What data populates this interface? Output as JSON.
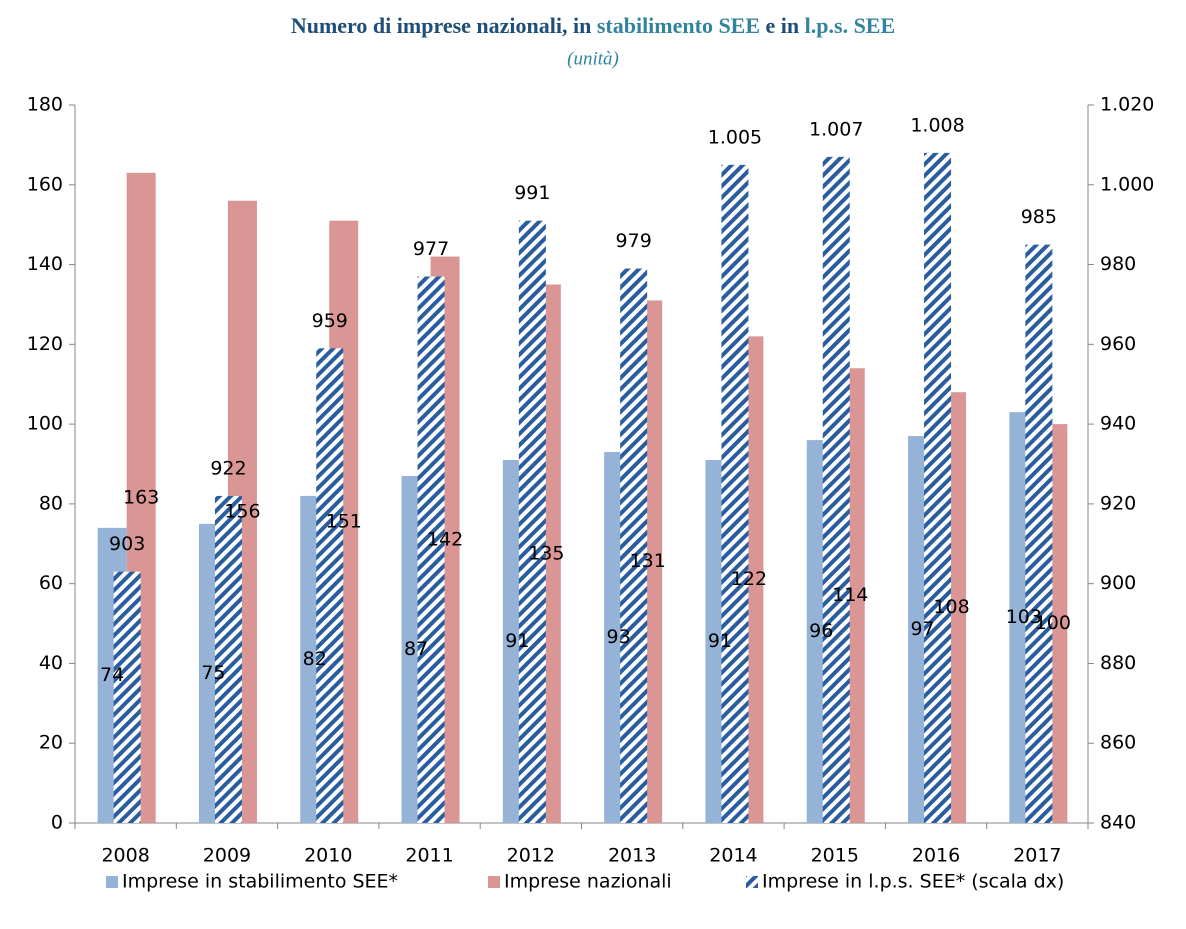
{
  "chart_data": {
    "type": "bar",
    "title_parts": [
      {
        "text": "Numero di imprese nazionali, in ",
        "color": "#1f4e79"
      },
      {
        "text": "stabilimento SEE",
        "color": "#31849b"
      },
      {
        "text": " e in ",
        "color": "#1f4e79"
      },
      {
        "text": "l.p.s. SEE",
        "color": "#31849b"
      }
    ],
    "subtitle": "(unità)",
    "categories": [
      "2008",
      "2009",
      "2010",
      "2011",
      "2012",
      "2013",
      "2014",
      "2015",
      "2016",
      "2017"
    ],
    "series": [
      {
        "name": "Imprese in stabilimento SEE*",
        "color": "#95b3d7",
        "values": [
          74,
          75,
          82,
          87,
          91,
          93,
          91,
          96,
          97,
          103
        ]
      },
      {
        "name": "Imprese nazionali",
        "color": "#d99694",
        "values": [
          163,
          156,
          151,
          142,
          135,
          131,
          122,
          114,
          108,
          100
        ]
      },
      {
        "name": "Imprese in l.p.s. SEE* (scala dx)",
        "color": "#2a5d9f",
        "hatched": true,
        "axis": "y2",
        "values": [
          903,
          922,
          959,
          977,
          991,
          979,
          1005,
          1007,
          1008,
          985
        ],
        "value_labels": [
          "903",
          "922",
          "959",
          "977",
          "991",
          "979",
          "1.005",
          "1.007",
          "1.008",
          "985"
        ]
      }
    ],
    "ylim": [
      0,
      180
    ],
    "yticks": [
      0,
      20,
      40,
      60,
      80,
      100,
      120,
      140,
      160,
      180
    ],
    "y2lim": [
      840,
      1020
    ],
    "y2ticks": [
      840,
      860,
      880,
      900,
      920,
      940,
      960,
      980,
      {
        "value": 1000,
        "label": "1.000"
      },
      {
        "value": 1020,
        "label": "1.020"
      }
    ],
    "legend": "bottom"
  }
}
